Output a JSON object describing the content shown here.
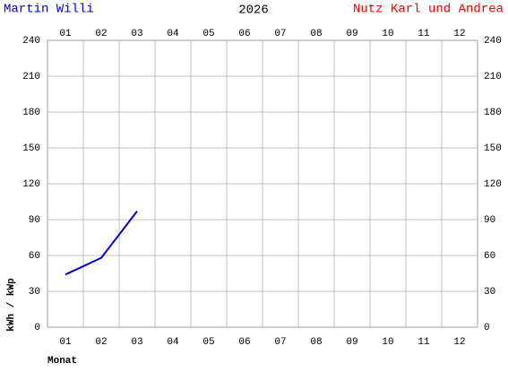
{
  "chart_data": {
    "type": "line",
    "title": "2026",
    "left_title": "Martin Willi",
    "right_title": "Nutz Karl und Andrea",
    "left_title_color": "#0000cc",
    "right_title_color": "#ee0000",
    "xlabel": "Monat",
    "ylabel": "kWh / kWp",
    "categories": [
      "01",
      "02",
      "03",
      "04",
      "05",
      "06",
      "07",
      "08",
      "09",
      "10",
      "11",
      "12"
    ],
    "series": [
      {
        "color": "#0000cc",
        "values": [
          44,
          58,
          97,
          null,
          null,
          null,
          null,
          null,
          null,
          null,
          null,
          null
        ]
      }
    ],
    "ylim": [
      0,
      240
    ],
    "yticks": [
      0,
      30,
      60,
      90,
      120,
      150,
      180,
      210,
      240
    ],
    "grid": true
  }
}
